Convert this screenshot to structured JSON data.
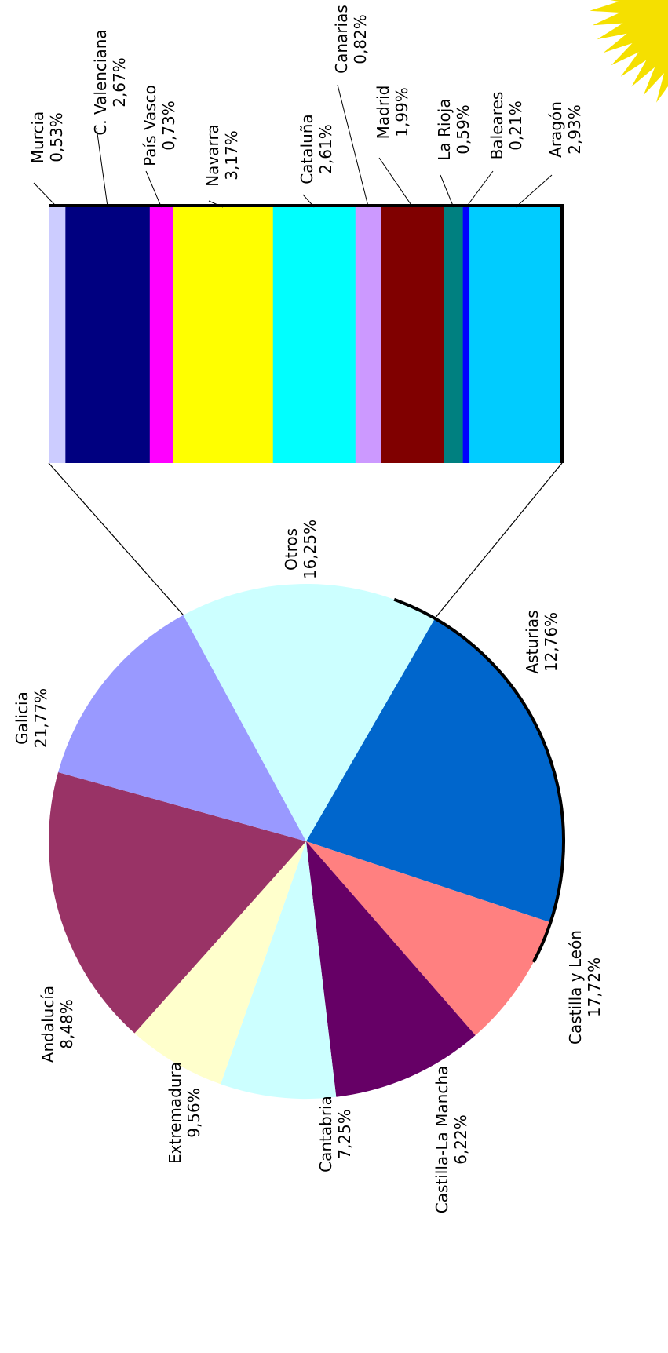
{
  "chart_data": {
    "type": "pie",
    "orientation": "rotated 90deg clockwise",
    "pie": {
      "slices": [
        {
          "label": "Galicia",
          "value_text": "21,77%",
          "value": 21.77,
          "color": "#0066CC"
        },
        {
          "label": "Andalucía",
          "value_text": "8,48%",
          "value": 8.48,
          "color": "#FF8080"
        },
        {
          "label": "Extremadura",
          "value_text": "9,56%",
          "value": 9.56,
          "color": "#660066"
        },
        {
          "label": "Cantabria",
          "value_text": "7,25%",
          "value": 7.25,
          "color": "#CCFFFF"
        },
        {
          "label": "Castilla-La Mancha",
          "value_text": "6,22%",
          "value": 6.22,
          "color": "#FFFFCC"
        },
        {
          "label": "Castilla y León",
          "value_text": "17,72%",
          "value": 17.72,
          "color": "#993366"
        },
        {
          "label": "Asturias",
          "value_text": "12,76%",
          "value": 12.76,
          "color": "#9999FF"
        },
        {
          "label": "Otros",
          "value_text": "16,25%",
          "value": 16.25,
          "color": "#CCFFFF",
          "exploded_into_bar": true
        }
      ]
    },
    "breakdown_bar": {
      "of": "Otros",
      "segments": [
        {
          "label": "Murcia",
          "value_text": "0,53%",
          "value": 0.53,
          "color": "#CCCCFF"
        },
        {
          "label": "C. Valenciana",
          "value_text": "2,67%",
          "value": 2.67,
          "color": "#000080"
        },
        {
          "label": "País Vasco",
          "value_text": "0,73%",
          "value": 0.73,
          "color": "#FF00FF"
        },
        {
          "label": "Navarra",
          "value_text": "3,17%",
          "value": 3.17,
          "color": "#FFFF00"
        },
        {
          "label": "Cataluña",
          "value_text": "2,61%",
          "value": 2.61,
          "color": "#00FFFF"
        },
        {
          "label": "Canarias",
          "value_text": "0,82%",
          "value": 0.82,
          "color": "#CC99FF"
        },
        {
          "label": "Madrid",
          "value_text": "1,99%",
          "value": 1.99,
          "color": "#800000"
        },
        {
          "label": "La Rioja",
          "value_text": "0,59%",
          "value": 0.59,
          "color": "#008080"
        },
        {
          "label": "Baleares",
          "value_text": "0,21%",
          "value": 0.21,
          "color": "#0000FF"
        },
        {
          "label": "Aragón",
          "value_text": "2,93%",
          "value": 2.93,
          "color": "#00CCFF"
        }
      ]
    }
  }
}
